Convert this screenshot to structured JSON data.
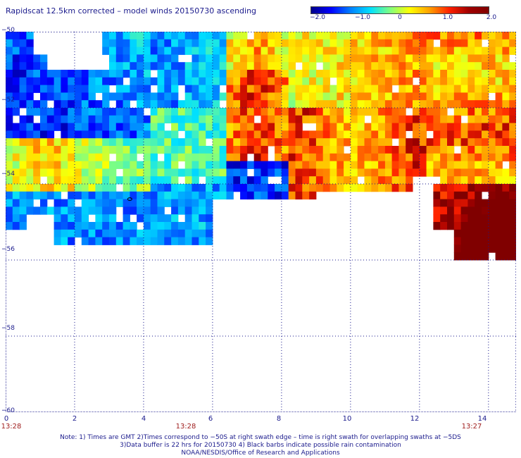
{
  "title": "Rapidscat 12.5km corrected – model winds 20150730 ascending",
  "colorbar": {
    "ticks": [
      "−2.0",
      "−1.0",
      "0",
      "1.0",
      "2.0"
    ],
    "tick_values": [
      -2.0,
      -1.0,
      0,
      1.0,
      2.0
    ],
    "colors": [
      "#00008b",
      "#0000ff",
      "#0080ff",
      "#00e0ff",
      "#80ff80",
      "#ffff00",
      "#ffa000",
      "#ff2000",
      "#a00000",
      "#800000"
    ]
  },
  "axes": {
    "y_labels": [
      "−50",
      "−52",
      "−54",
      "−56",
      "−58",
      "−60"
    ],
    "x_labels": [
      "0",
      "2",
      "4",
      "6",
      "8",
      "10",
      "12",
      "14"
    ],
    "time_labels": [
      "13:28",
      "13:28",
      "13:27"
    ]
  },
  "notes": {
    "line1": "Note: 1) Times are GMT 2)Times correspond to −50S at right swath edge – time is right swath for overlapping swaths at −5DS",
    "line2": "3)Data buffer is 22 hrs for 20150730 4) Black barbs indicate possible rain contamination",
    "line3": "NOAA/NESDIS/Office of Research and Applications"
  },
  "chart_data": {
    "type": "heatmap",
    "title": "Rapidscat 12.5km corrected – model winds 20150730 ascending",
    "x_range": [
      0,
      14.8
    ],
    "y_range": [
      -60,
      -50
    ],
    "value_range": [
      -2.0,
      2.0
    ],
    "grid": "dotted",
    "region_values": [
      {
        "lon_min": 0,
        "lon_max": 4,
        "lat_min": -53,
        "lat_max": -50,
        "value": -1.6
      },
      {
        "lon_min": 0,
        "lon_max": 6,
        "lat_min": -54,
        "lat_max": -53,
        "value": 0.4
      },
      {
        "lon_min": 1.5,
        "lon_max": 6,
        "lat_min": -55.5,
        "lat_max": -54.5,
        "value": -1.2
      },
      {
        "lon_min": 6.8,
        "lon_max": 8,
        "lat_min": -52.5,
        "lat_max": -51.2,
        "value": 1.6
      },
      {
        "lon_min": 9,
        "lon_max": 11.5,
        "lat_min": -54,
        "lat_max": -52.5,
        "value": 1.2
      },
      {
        "lon_min": 12.5,
        "lon_max": 14.8,
        "lat_min": -52.5,
        "lat_max": -50.5,
        "value": 1.2
      },
      {
        "lon_min": 13,
        "lon_max": 14.8,
        "lat_min": -56,
        "lat_max": -55
      },
      {
        "lon_min": 4,
        "lon_max": 6,
        "lat_min": -52,
        "lat_max": -50,
        "value": -1.0
      },
      {
        "lon_min": 6,
        "lon_max": 8,
        "lat_min": -55,
        "lat_max": -54,
        "value": -1.4
      }
    ]
  }
}
